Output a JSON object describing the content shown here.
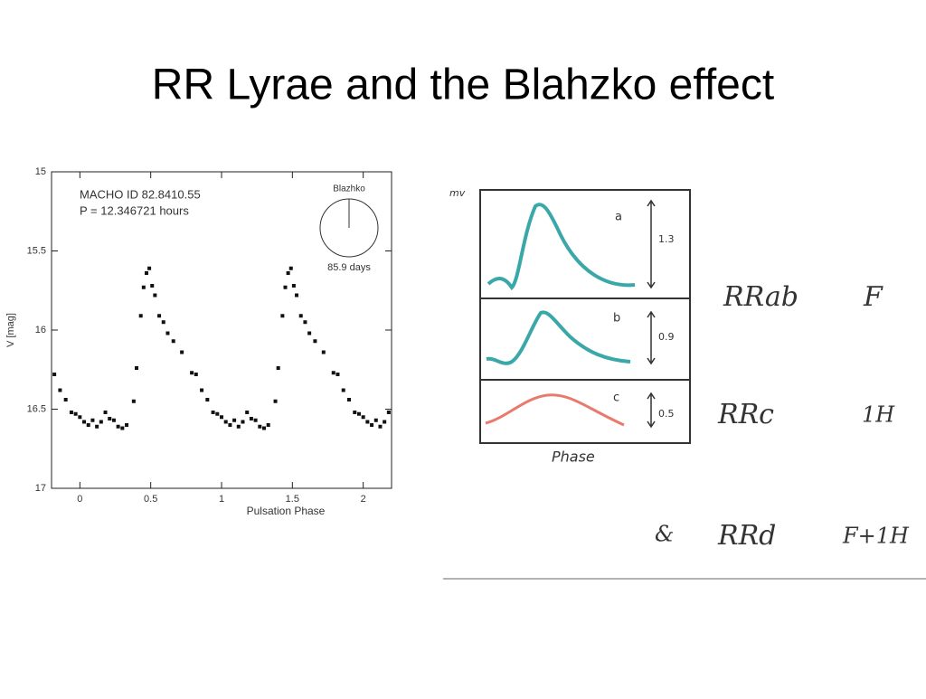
{
  "title": "RR Lyrae and the Blahzko effect",
  "chart_data": {
    "type": "scatter",
    "xlabel": "Pulsation Phase",
    "ylabel": "V [mag]",
    "annotations": [
      "MACHO ID 82.8410.55",
      "P = 12.346721 hours",
      "Blazhko",
      "85.9 days"
    ],
    "color": "#111111",
    "xlim": [
      -0.2,
      2.2
    ],
    "ylim": [
      17,
      15
    ],
    "xticks": [
      0,
      0.5,
      1,
      1.5,
      2
    ],
    "yticks": [
      15,
      15.5,
      16,
      16.5,
      17
    ],
    "x": [
      -0.18,
      -0.14,
      -0.1,
      -0.06,
      -0.03,
      0.0,
      0.03,
      0.06,
      0.09,
      0.12,
      0.15,
      0.18,
      0.21,
      0.24,
      0.27,
      0.3,
      0.33,
      0.38,
      0.4,
      0.43,
      0.45,
      0.47,
      0.49,
      0.51,
      0.53,
      0.56,
      0.59,
      0.62,
      0.66,
      0.72,
      0.79,
      0.82,
      0.86,
      0.9,
      0.94,
      0.97,
      1.0,
      1.03,
      1.06,
      1.09,
      1.12,
      1.15,
      1.18,
      1.21,
      1.24,
      1.27,
      1.3,
      1.33,
      1.38,
      1.4,
      1.43,
      1.45,
      1.47,
      1.49,
      1.51,
      1.53,
      1.56,
      1.59,
      1.62,
      1.66,
      1.72,
      1.79,
      1.82,
      1.86,
      1.9,
      1.94,
      1.97,
      2.0,
      2.03,
      2.06,
      2.09,
      2.12,
      2.15,
      2.18
    ],
    "values": [
      16.28,
      16.38,
      16.44,
      16.52,
      16.53,
      16.55,
      16.58,
      16.6,
      16.57,
      16.61,
      16.58,
      16.52,
      16.56,
      16.57,
      16.61,
      16.62,
      16.6,
      16.45,
      16.24,
      15.91,
      15.73,
      15.64,
      15.61,
      15.72,
      15.78,
      15.91,
      15.95,
      16.02,
      16.07,
      16.14,
      16.27,
      16.28,
      16.38,
      16.44,
      16.52,
      16.53,
      16.55,
      16.58,
      16.6,
      16.57,
      16.61,
      16.58,
      16.52,
      16.56,
      16.57,
      16.61,
      16.62,
      16.6,
      16.45,
      16.24,
      15.91,
      15.73,
      15.64,
      15.61,
      15.72,
      15.78,
      15.91,
      15.95,
      16.02,
      16.07,
      16.14,
      16.27,
      16.28,
      16.38,
      16.44,
      16.52,
      16.53,
      16.55,
      16.58,
      16.6,
      16.57,
      16.61,
      16.58,
      16.52
    ]
  },
  "diagram": {
    "axis_label": "mv",
    "phase_label": "Phase",
    "panels": [
      {
        "letter": "a",
        "amplitude": "1.3"
      },
      {
        "letter": "b",
        "amplitude": "0.9"
      },
      {
        "letter": "c",
        "amplitude": "0.5"
      }
    ],
    "rows": [
      [
        "RRab",
        "F"
      ],
      [
        "RRc",
        "1H"
      ],
      [
        "&",
        "RRd",
        "F+1H"
      ]
    ]
  }
}
